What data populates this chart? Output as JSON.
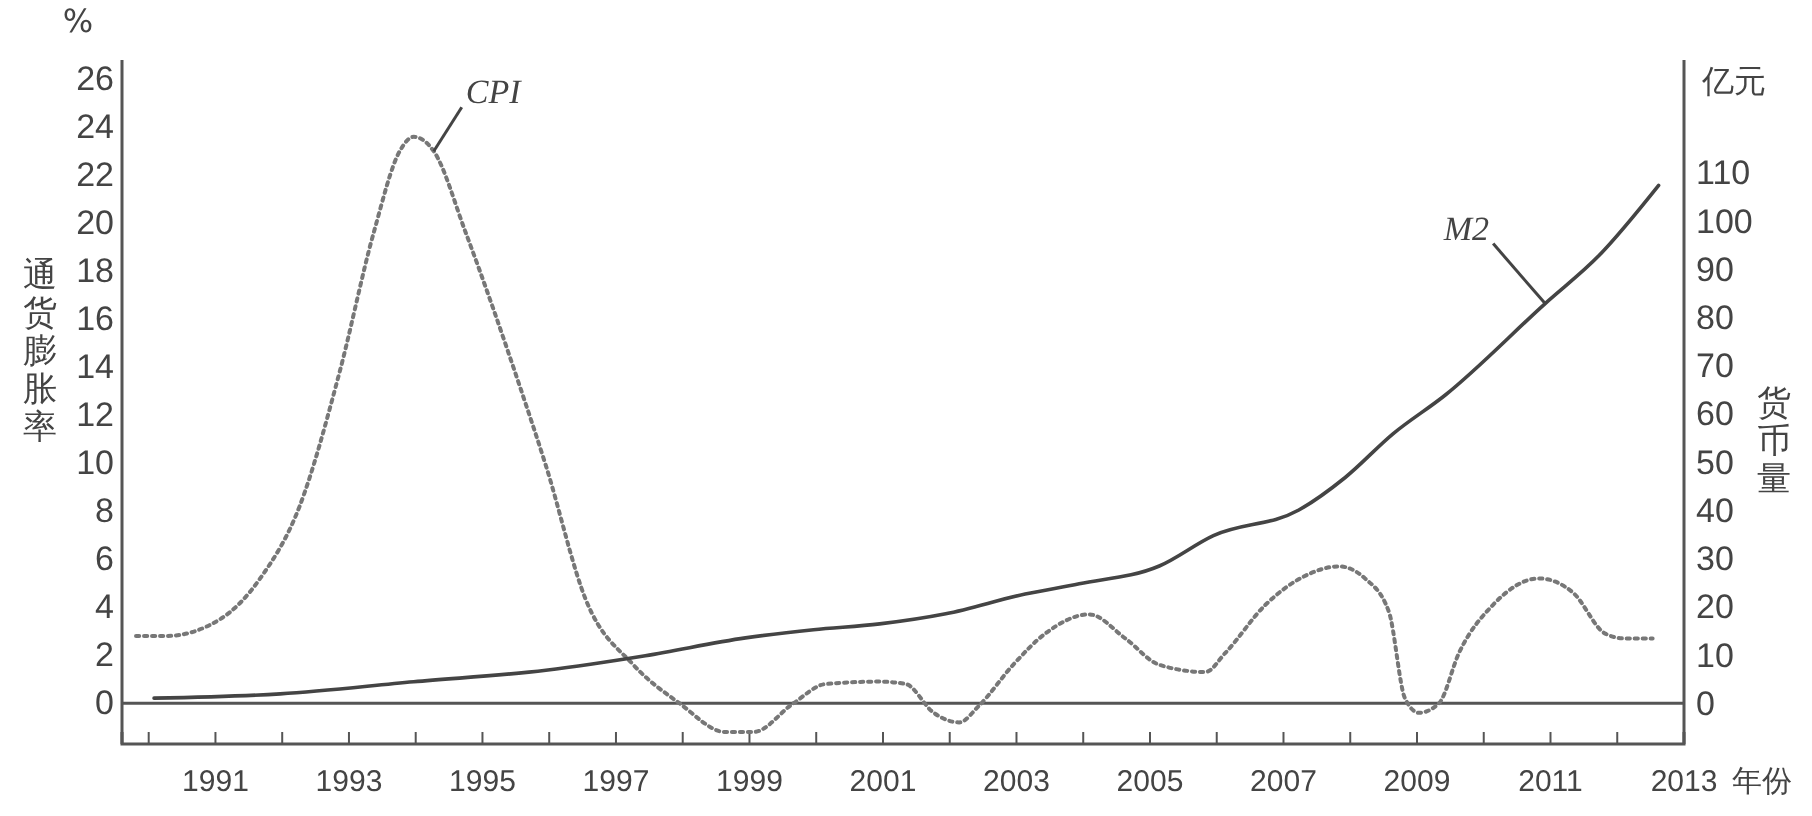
{
  "chart_data": {
    "type": "line",
    "xlabel": "年份",
    "ylabel": "通货膨胀率",
    "y2label": "货币量",
    "annotations": [
      "%",
      "亿元"
    ],
    "xlim": [
      1989.6,
      2013
    ],
    "xticks": [
      {
        "value": 1990,
        "label": null
      },
      1991,
      {
        "value": 1992,
        "label": null
      },
      1993,
      {
        "value": 1994,
        "label": null
      },
      1995,
      {
        "value": 1996,
        "label": null
      },
      1997,
      {
        "value": 1998,
        "label": null
      },
      1999,
      {
        "value": 2000,
        "label": null
      },
      2001,
      {
        "value": 2002,
        "label": null
      },
      2003,
      {
        "value": 2004,
        "label": null
      },
      2005,
      {
        "value": 2006,
        "label": null
      },
      2007,
      {
        "value": 2008,
        "label": null
      },
      2009,
      {
        "value": 2010,
        "label": null
      },
      2011,
      {
        "value": 2012,
        "label": null
      },
      2013
    ],
    "ylim": [
      -1.7,
      26.8
    ],
    "yticks": [
      0,
      2,
      4,
      6,
      8,
      10,
      12,
      14,
      16,
      18,
      20,
      22,
      24,
      26
    ],
    "y2lim": [
      -8.3,
      133.5
    ],
    "y2ticks": [
      0,
      10,
      20,
      30,
      40,
      50,
      60,
      70,
      80,
      90,
      100,
      110
    ],
    "ref_lines": [
      {
        "axis": "y",
        "value": 0,
        "color": "#555555"
      }
    ],
    "grid": false,
    "legend": false,
    "marker": "none",
    "series": [
      {
        "name": "CPI",
        "color": "#777777",
        "line_style": "dotted",
        "x": [
          1989.81,
          1990.26,
          1991.07,
          1991.67,
          1992.26,
          1992.86,
          1993.37,
          1993.76,
          1993.97,
          1994.27,
          1994.75,
          1995.56,
          1995.95,
          1996.55,
          1997.26,
          1997.95,
          1998.64,
          1999.06,
          1999.66,
          2000.14,
          2000.95,
          2001.34,
          2001.76,
          2002.14,
          2002.44,
          2002.95,
          2003.43,
          2004.09,
          2004.63,
          2005.14,
          2005.83,
          2006.13,
          2006.73,
          2007.32,
          2007.83,
          2008.22,
          2008.58,
          2008.82,
          2009.03,
          2009.33,
          2009.63,
          2010.14,
          2010.83,
          2011.34,
          2011.82,
          2012.11,
          2012.53
        ],
        "values": [
          2.8,
          2.8,
          3.5,
          5.2,
          8.2,
          13.8,
          19.6,
          23,
          23.6,
          23,
          19.6,
          13.2,
          9.9,
          4.3,
          1.6,
          0,
          -1.2,
          -1.2,
          0,
          0.8,
          0.9,
          0.8,
          -0.4,
          -0.8,
          -0.1,
          1.6,
          2.9,
          3.7,
          2.7,
          1.6,
          1.3,
          2.1,
          4.1,
          5.3,
          5.7,
          5.2,
          3.8,
          0.2,
          -0.4,
          0,
          2.1,
          4.1,
          5.2,
          4.6,
          2.9,
          2.7,
          2.7
        ]
      },
      {
        "name": "M2",
        "color": "#444444",
        "line_style": "solid",
        "axis": "y2",
        "x": [
          1990.08,
          1991.97,
          1993.97,
          1995.95,
          1997.44,
          1998.94,
          1999.96,
          2000.95,
          2001.94,
          2003.13,
          2003.94,
          2005.14,
          2005.95,
          2007.23,
          2007.92,
          2008.64,
          2009.42,
          2010.92,
          2011.73,
          2012.62
        ],
        "values": [
          1.2,
          2.1,
          4.6,
          7,
          10,
          13.7,
          15.4,
          16.6,
          18.7,
          22.8,
          24.9,
          28.6,
          34.9,
          40.2,
          46.9,
          56,
          64,
          83,
          93,
          107.5
        ]
      }
    ]
  }
}
